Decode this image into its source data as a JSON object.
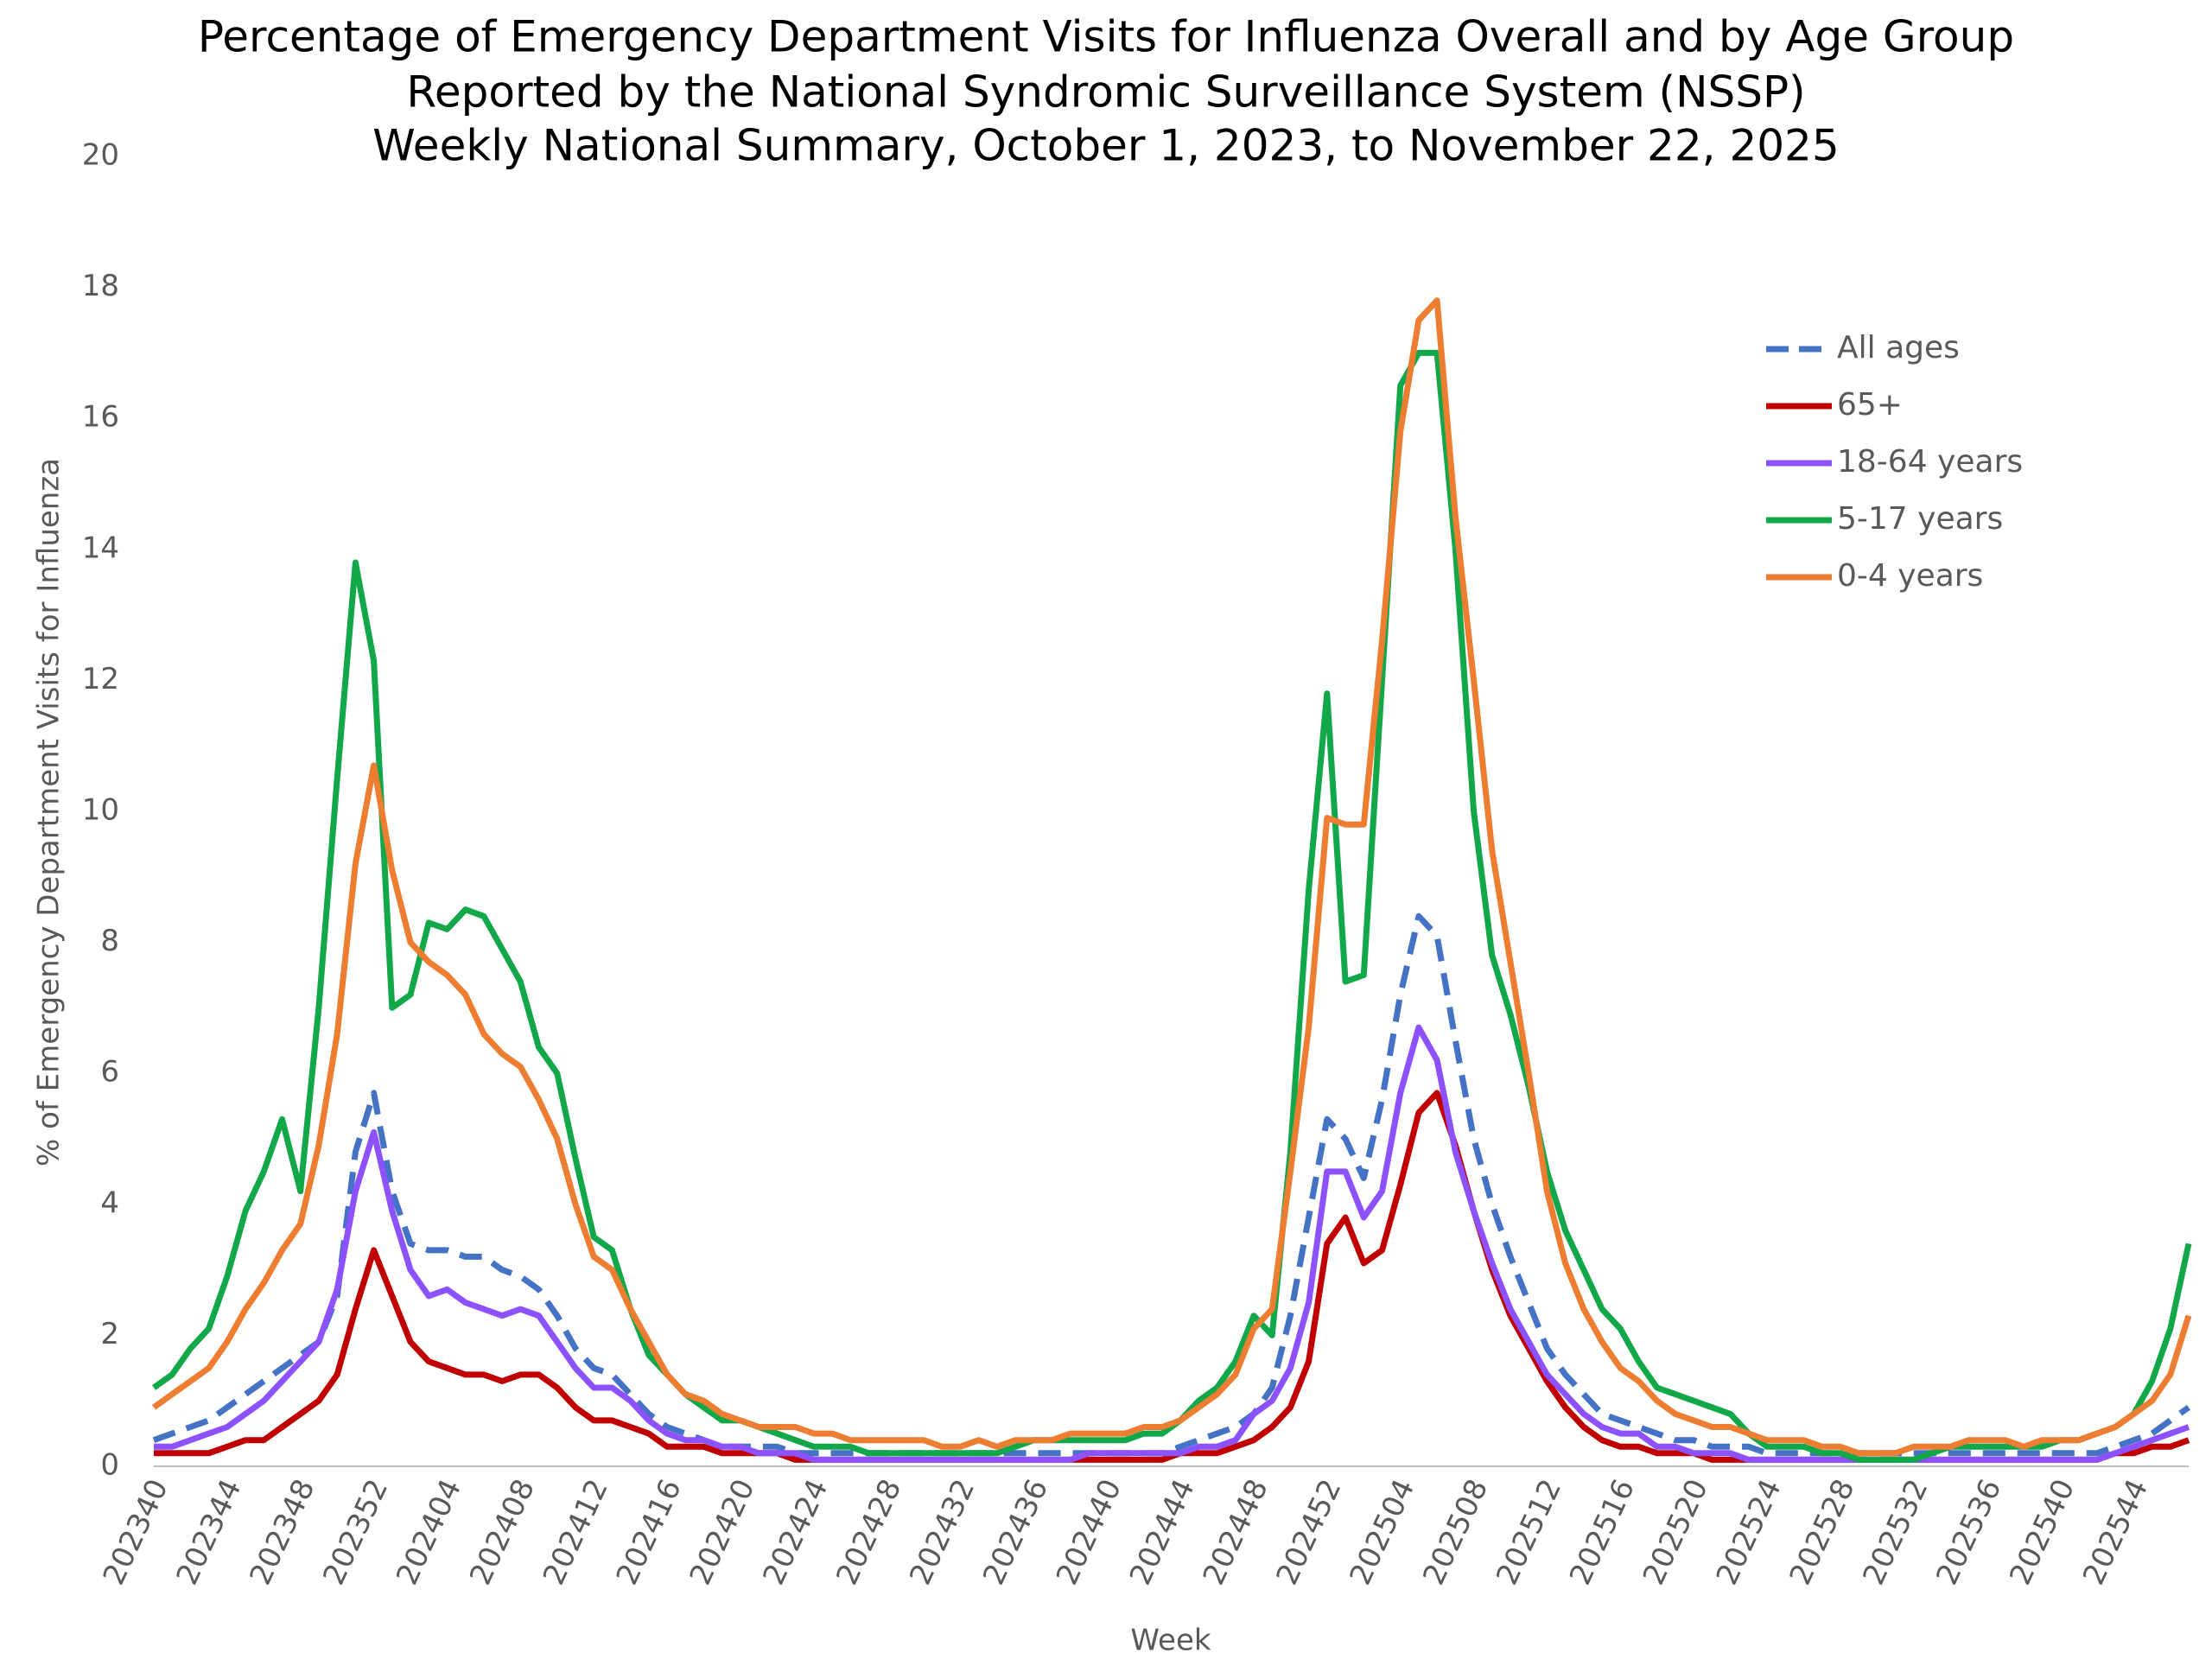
{
  "chart_data": {
    "type": "line",
    "title": [
      "Percentage of Emergency Department Visits for Influenza Overall and by Age Group",
      "Reported by the National Syndromic Surveillance System (NSSP)",
      "Weekly National Summary, October 1, 2023, to  November 22, 2025"
    ],
    "x_label": "Week",
    "y_label": "% of Emergency Department Visits for Influenza",
    "ylim": [
      0,
      20
    ],
    "yticks": [
      0,
      2,
      4,
      6,
      8,
      10,
      12,
      14,
      16,
      18,
      20
    ],
    "grid": false,
    "legend": "upper right",
    "categories": [
      "202340",
      null,
      null,
      null,
      "202344",
      null,
      null,
      null,
      "202348",
      null,
      null,
      null,
      "202352",
      null,
      null,
      null,
      "202404",
      null,
      null,
      null,
      "202408",
      null,
      null,
      null,
      "202412",
      null,
      null,
      null,
      "202416",
      null,
      null,
      null,
      "202420",
      null,
      null,
      null,
      "202424",
      null,
      null,
      null,
      "202428",
      null,
      null,
      null,
      "202432",
      null,
      null,
      null,
      "202436",
      null,
      null,
      null,
      "202440",
      null,
      null,
      null,
      "202444",
      null,
      null,
      null,
      "202448",
      null,
      null,
      null,
      "202452",
      null,
      null,
      null,
      "202504",
      null,
      null,
      null,
      "202508",
      null,
      null,
      null,
      "202512",
      null,
      null,
      null,
      "202516",
      null,
      null,
      null,
      "202520",
      null,
      null,
      null,
      "202524",
      null,
      null,
      null,
      "202528",
      null,
      null,
      null,
      "202532",
      null,
      null,
      null,
      "202536",
      null,
      null,
      null,
      "202540",
      null,
      null,
      null,
      "202544",
      null,
      null,
      null
    ],
    "series": [
      {
        "name": "All ages",
        "color": "#4472c4",
        "dashed": true,
        "values": [
          0.4,
          0.5,
          0.6,
          0.7,
          0.9,
          1.1,
          1.3,
          1.5,
          1.7,
          1.9,
          2.6,
          4.8,
          5.7,
          4.2,
          3.4,
          3.3,
          3.3,
          3.2,
          3.2,
          3.0,
          2.9,
          2.7,
          2.3,
          1.8,
          1.5,
          1.4,
          1.1,
          0.8,
          0.6,
          0.5,
          0.4,
          0.3,
          0.3,
          0.3,
          0.3,
          0.2,
          0.2,
          0.2,
          0.2,
          0.2,
          0.2,
          0.2,
          0.2,
          0.2,
          0.2,
          0.2,
          0.2,
          0.2,
          0.2,
          0.2,
          0.2,
          0.2,
          0.2,
          0.2,
          0.2,
          0.2,
          0.3,
          0.4,
          0.5,
          0.6,
          0.8,
          1.2,
          2.3,
          3.8,
          5.3,
          5.0,
          4.4,
          5.6,
          7.2,
          8.4,
          8.1,
          6.5,
          5.0,
          4.0,
          3.2,
          2.5,
          1.8,
          1.4,
          1.1,
          0.8,
          0.7,
          0.6,
          0.5,
          0.4,
          0.4,
          0.3,
          0.3,
          0.3,
          0.2,
          0.2,
          0.2,
          0.2,
          0.2,
          0.2,
          0.2,
          0.2,
          0.2,
          0.2,
          0.2,
          0.2,
          0.2,
          0.2,
          0.2,
          0.2,
          0.2,
          0.2,
          0.2,
          0.3,
          0.4,
          0.5,
          0.7,
          0.9
        ]
      },
      {
        "name": "65+",
        "color": "#c00000",
        "dashed": false,
        "values": [
          0.2,
          0.2,
          0.2,
          0.2,
          0.3,
          0.4,
          0.4,
          0.6,
          0.8,
          1.0,
          1.4,
          2.4,
          3.3,
          2.6,
          1.9,
          1.6,
          1.5,
          1.4,
          1.4,
          1.3,
          1.4,
          1.4,
          1.2,
          0.9,
          0.7,
          0.7,
          0.6,
          0.5,
          0.3,
          0.3,
          0.3,
          0.2,
          0.2,
          0.2,
          0.2,
          0.1,
          0.1,
          0.1,
          0.1,
          0.1,
          0.1,
          0.1,
          0.1,
          0.1,
          0.1,
          0.1,
          0.1,
          0.1,
          0.1,
          0.1,
          0.1,
          0.1,
          0.1,
          0.1,
          0.1,
          0.1,
          0.2,
          0.2,
          0.2,
          0.3,
          0.4,
          0.6,
          0.9,
          1.6,
          3.4,
          3.8,
          3.1,
          3.3,
          4.3,
          5.4,
          5.7,
          4.9,
          3.9,
          3.0,
          2.3,
          1.8,
          1.3,
          0.9,
          0.6,
          0.4,
          0.3,
          0.3,
          0.2,
          0.2,
          0.2,
          0.1,
          0.1,
          0.1,
          0.1,
          0.1,
          0.1,
          0.1,
          0.1,
          0.1,
          0.1,
          0.1,
          0.1,
          0.1,
          0.1,
          0.1,
          0.1,
          0.1,
          0.1,
          0.1,
          0.1,
          0.1,
          0.1,
          0.2,
          0.2,
          0.3,
          0.3,
          0.4
        ]
      },
      {
        "name": "18-64 years",
        "color": "#8c52ff",
        "dashed": false,
        "values": [
          0.3,
          0.3,
          0.4,
          0.5,
          0.6,
          0.8,
          1.0,
          1.3,
          1.6,
          1.9,
          2.7,
          4.2,
          5.1,
          3.9,
          3.0,
          2.6,
          2.7,
          2.5,
          2.4,
          2.3,
          2.4,
          2.3,
          1.9,
          1.5,
          1.2,
          1.2,
          1.0,
          0.7,
          0.5,
          0.4,
          0.4,
          0.3,
          0.3,
          0.2,
          0.2,
          0.2,
          0.1,
          0.1,
          0.1,
          0.1,
          0.1,
          0.1,
          0.1,
          0.1,
          0.1,
          0.1,
          0.1,
          0.1,
          0.1,
          0.1,
          0.1,
          0.2,
          0.2,
          0.2,
          0.2,
          0.2,
          0.2,
          0.3,
          0.3,
          0.4,
          0.8,
          1.0,
          1.5,
          2.5,
          4.5,
          4.5,
          3.8,
          4.2,
          5.7,
          6.7,
          6.2,
          4.8,
          3.9,
          3.1,
          2.4,
          1.9,
          1.4,
          1.1,
          0.8,
          0.6,
          0.5,
          0.5,
          0.3,
          0.3,
          0.2,
          0.2,
          0.2,
          0.1,
          0.1,
          0.1,
          0.1,
          0.1,
          0.1,
          0.1,
          0.1,
          0.1,
          0.1,
          0.1,
          0.1,
          0.1,
          0.1,
          0.1,
          0.1,
          0.1,
          0.1,
          0.1,
          0.1,
          0.2,
          0.3,
          0.4,
          0.5,
          0.6
        ]
      },
      {
        "name": "5-17 years",
        "color": "#12a84a",
        "dashed": false,
        "values": [
          1.2,
          1.4,
          1.8,
          2.1,
          2.9,
          3.9,
          4.5,
          5.3,
          4.2,
          7.0,
          10.5,
          13.8,
          12.3,
          7.0,
          7.2,
          8.3,
          8.2,
          8.5,
          8.4,
          7.9,
          7.4,
          6.4,
          6.0,
          4.7,
          3.5,
          3.3,
          2.4,
          1.7,
          1.4,
          1.1,
          0.9,
          0.7,
          0.7,
          0.6,
          0.5,
          0.4,
          0.3,
          0.3,
          0.3,
          0.2,
          0.2,
          0.2,
          0.2,
          0.2,
          0.2,
          0.2,
          0.2,
          0.3,
          0.4,
          0.4,
          0.4,
          0.4,
          0.4,
          0.4,
          0.5,
          0.5,
          0.7,
          1.0,
          1.2,
          1.6,
          2.3,
          2.0,
          4.8,
          8.8,
          11.8,
          7.4,
          7.5,
          12.0,
          16.5,
          17.0,
          17.0,
          14.0,
          10.0,
          7.8,
          6.9,
          5.8,
          4.5,
          3.6,
          3.0,
          2.4,
          2.1,
          1.6,
          1.2,
          1.1,
          1.0,
          0.9,
          0.8,
          0.5,
          0.3,
          0.3,
          0.3,
          0.2,
          0.2,
          0.1,
          0.1,
          0.1,
          0.1,
          0.2,
          0.3,
          0.3,
          0.3,
          0.3,
          0.3,
          0.3,
          0.4,
          0.4,
          0.5,
          0.6,
          0.8,
          1.3,
          2.1,
          3.4
        ]
      },
      {
        "name": "0-4 years",
        "color": "#ed7d31",
        "dashed": false,
        "values": [
          0.9,
          1.1,
          1.3,
          1.5,
          1.9,
          2.4,
          2.8,
          3.3,
          3.7,
          4.9,
          6.6,
          9.2,
          10.7,
          9.1,
          8.0,
          7.7,
          7.5,
          7.2,
          6.6,
          6.3,
          6.1,
          5.6,
          5.0,
          4.0,
          3.2,
          3.0,
          2.4,
          1.9,
          1.4,
          1.1,
          1.0,
          0.8,
          0.7,
          0.6,
          0.6,
          0.6,
          0.5,
          0.5,
          0.4,
          0.4,
          0.4,
          0.4,
          0.4,
          0.3,
          0.3,
          0.4,
          0.3,
          0.4,
          0.4,
          0.4,
          0.5,
          0.5,
          0.5,
          0.5,
          0.6,
          0.6,
          0.7,
          0.9,
          1.1,
          1.4,
          2.1,
          2.4,
          4.5,
          6.7,
          9.9,
          9.8,
          9.8,
          12.6,
          15.8,
          17.5,
          17.8,
          14.5,
          12.0,
          9.4,
          7.7,
          6.0,
          4.2,
          3.1,
          2.4,
          1.9,
          1.5,
          1.3,
          1.0,
          0.8,
          0.7,
          0.6,
          0.6,
          0.5,
          0.4,
          0.4,
          0.4,
          0.3,
          0.3,
          0.2,
          0.2,
          0.2,
          0.3,
          0.3,
          0.3,
          0.4,
          0.4,
          0.4,
          0.3,
          0.4,
          0.4,
          0.4,
          0.5,
          0.6,
          0.8,
          1.0,
          1.4,
          2.3
        ]
      }
    ]
  }
}
